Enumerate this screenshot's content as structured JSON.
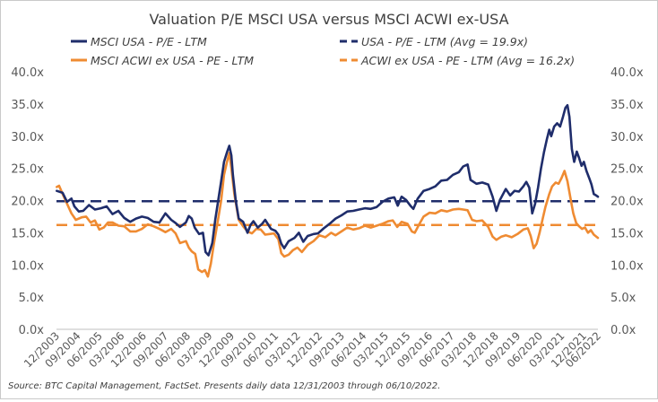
{
  "chart_data": {
    "type": "line",
    "title": "Valuation P/E MSCI USA versus MSCI ACWI ex-USA",
    "source": "Source: BTC Capital Management, FactSet. Presents daily data 12/31/2003 through 06/10/2022.",
    "ylim": [
      0,
      40
    ],
    "y_ticks": [
      {
        "value": 0,
        "label": "0.0x"
      },
      {
        "value": 5,
        "label": "5.0x"
      },
      {
        "value": 10,
        "label": "10.0x"
      },
      {
        "value": 15,
        "label": "15.0x"
      },
      {
        "value": 20,
        "label": "20.0x"
      },
      {
        "value": 25,
        "label": "25.0x"
      },
      {
        "value": 30,
        "label": "30.0x"
      },
      {
        "value": 35,
        "label": "35.0x"
      },
      {
        "value": 40,
        "label": "40.0x"
      }
    ],
    "x_range": [
      2003.99,
      2022.44
    ],
    "x_ticks": [
      {
        "value": 2003.99,
        "label": "12/2003"
      },
      {
        "value": 2004.71,
        "label": "09/2004"
      },
      {
        "value": 2005.45,
        "label": "06/2005"
      },
      {
        "value": 2006.2,
        "label": "03/2006"
      },
      {
        "value": 2006.95,
        "label": "12/2006"
      },
      {
        "value": 2007.7,
        "label": "09/2007"
      },
      {
        "value": 2008.45,
        "label": "06/2008"
      },
      {
        "value": 2009.2,
        "label": "03/2009"
      },
      {
        "value": 2009.95,
        "label": "12/2009"
      },
      {
        "value": 2010.7,
        "label": "09/2010"
      },
      {
        "value": 2011.45,
        "label": "06/2011"
      },
      {
        "value": 2012.2,
        "label": "03/2012"
      },
      {
        "value": 2012.95,
        "label": "12/2012"
      },
      {
        "value": 2013.7,
        "label": "09/2013"
      },
      {
        "value": 2014.45,
        "label": "06/2014"
      },
      {
        "value": 2015.2,
        "label": "03/2015"
      },
      {
        "value": 2015.95,
        "label": "12/2015"
      },
      {
        "value": 2016.7,
        "label": "09/2016"
      },
      {
        "value": 2017.45,
        "label": "06/2017"
      },
      {
        "value": 2018.2,
        "label": "03/2018"
      },
      {
        "value": 2018.95,
        "label": "12/2018"
      },
      {
        "value": 2019.7,
        "label": "09/2019"
      },
      {
        "value": 2020.45,
        "label": "06/2020"
      },
      {
        "value": 2021.2,
        "label": "03/2021"
      },
      {
        "value": 2021.95,
        "label": "12/2021"
      },
      {
        "value": 2022.44,
        "label": "06/2022"
      }
    ],
    "legend_placement": "top",
    "series": [
      {
        "name": "MSCI USA - P/E - LTM",
        "color": "#1f2d6b",
        "style": "solid",
        "points": [
          [
            2004.0,
            21.5
          ],
          [
            2004.2,
            21.2
          ],
          [
            2004.35,
            19.8
          ],
          [
            2004.5,
            20.3
          ],
          [
            2004.6,
            19.1
          ],
          [
            2004.75,
            18.3
          ],
          [
            2004.9,
            18.4
          ],
          [
            2005.1,
            19.3
          ],
          [
            2005.3,
            18.6
          ],
          [
            2005.5,
            18.8
          ],
          [
            2005.7,
            19.1
          ],
          [
            2005.9,
            17.9
          ],
          [
            2006.1,
            18.4
          ],
          [
            2006.3,
            17.3
          ],
          [
            2006.5,
            16.7
          ],
          [
            2006.7,
            17.2
          ],
          [
            2006.9,
            17.5
          ],
          [
            2007.1,
            17.3
          ],
          [
            2007.3,
            16.7
          ],
          [
            2007.5,
            16.6
          ],
          [
            2007.7,
            18.0
          ],
          [
            2007.9,
            17.0
          ],
          [
            2008.05,
            16.5
          ],
          [
            2008.2,
            15.9
          ],
          [
            2008.4,
            16.6
          ],
          [
            2008.5,
            17.6
          ],
          [
            2008.6,
            17.2
          ],
          [
            2008.7,
            15.8
          ],
          [
            2008.85,
            14.8
          ],
          [
            2008.98,
            15.0
          ],
          [
            2009.07,
            12.0
          ],
          [
            2009.17,
            11.5
          ],
          [
            2009.3,
            13.4
          ],
          [
            2009.4,
            17.0
          ],
          [
            2009.5,
            20.0
          ],
          [
            2009.6,
            23.0
          ],
          [
            2009.7,
            26.0
          ],
          [
            2009.8,
            27.5
          ],
          [
            2009.88,
            28.5
          ],
          [
            2009.95,
            27.0
          ],
          [
            2010.0,
            24.0
          ],
          [
            2010.1,
            20.0
          ],
          [
            2010.2,
            17.2
          ],
          [
            2010.35,
            16.7
          ],
          [
            2010.5,
            15.0
          ],
          [
            2010.6,
            16.2
          ],
          [
            2010.7,
            16.8
          ],
          [
            2010.85,
            15.8
          ],
          [
            2011.0,
            16.4
          ],
          [
            2011.1,
            17.0
          ],
          [
            2011.3,
            15.6
          ],
          [
            2011.45,
            15.3
          ],
          [
            2011.55,
            14.7
          ],
          [
            2011.65,
            13.3
          ],
          [
            2011.75,
            12.6
          ],
          [
            2011.9,
            13.7
          ],
          [
            2012.1,
            14.2
          ],
          [
            2012.25,
            15.0
          ],
          [
            2012.4,
            13.6
          ],
          [
            2012.55,
            14.5
          ],
          [
            2012.75,
            14.8
          ],
          [
            2012.9,
            14.9
          ],
          [
            2013.1,
            15.7
          ],
          [
            2013.3,
            16.4
          ],
          [
            2013.5,
            17.2
          ],
          [
            2013.7,
            17.7
          ],
          [
            2013.9,
            18.3
          ],
          [
            2014.1,
            18.4
          ],
          [
            2014.3,
            18.6
          ],
          [
            2014.5,
            18.8
          ],
          [
            2014.7,
            18.7
          ],
          [
            2014.9,
            19.0
          ],
          [
            2015.1,
            19.8
          ],
          [
            2015.3,
            20.3
          ],
          [
            2015.5,
            20.5
          ],
          [
            2015.62,
            19.2
          ],
          [
            2015.75,
            20.6
          ],
          [
            2015.9,
            20.1
          ],
          [
            2016.05,
            19.2
          ],
          [
            2016.15,
            18.7
          ],
          [
            2016.3,
            20.3
          ],
          [
            2016.5,
            21.5
          ],
          [
            2016.7,
            21.8
          ],
          [
            2016.9,
            22.2
          ],
          [
            2017.1,
            23.1
          ],
          [
            2017.3,
            23.2
          ],
          [
            2017.5,
            24.0
          ],
          [
            2017.7,
            24.4
          ],
          [
            2017.85,
            25.3
          ],
          [
            2018.0,
            25.6
          ],
          [
            2018.1,
            23.2
          ],
          [
            2018.3,
            22.6
          ],
          [
            2018.5,
            22.8
          ],
          [
            2018.7,
            22.5
          ],
          [
            2018.85,
            20.6
          ],
          [
            2018.98,
            18.4
          ],
          [
            2019.1,
            20.1
          ],
          [
            2019.3,
            21.8
          ],
          [
            2019.45,
            20.8
          ],
          [
            2019.6,
            21.5
          ],
          [
            2019.75,
            21.4
          ],
          [
            2019.9,
            22.2
          ],
          [
            2020.0,
            22.9
          ],
          [
            2020.1,
            22.0
          ],
          [
            2020.2,
            18.0
          ],
          [
            2020.3,
            19.5
          ],
          [
            2020.4,
            22.0
          ],
          [
            2020.5,
            25.0
          ],
          [
            2020.6,
            27.5
          ],
          [
            2020.7,
            29.5
          ],
          [
            2020.78,
            31.0
          ],
          [
            2020.85,
            30.0
          ],
          [
            2020.95,
            31.5
          ],
          [
            2021.05,
            32.0
          ],
          [
            2021.15,
            31.5
          ],
          [
            2021.25,
            33.0
          ],
          [
            2021.33,
            34.4
          ],
          [
            2021.4,
            34.8
          ],
          [
            2021.47,
            33.0
          ],
          [
            2021.55,
            28.0
          ],
          [
            2021.63,
            26.0
          ],
          [
            2021.72,
            27.6
          ],
          [
            2021.8,
            26.6
          ],
          [
            2021.88,
            25.4
          ],
          [
            2021.96,
            26.0
          ],
          [
            2022.05,
            24.6
          ],
          [
            2022.15,
            23.4
          ],
          [
            2022.22,
            22.5
          ],
          [
            2022.3,
            21.0
          ],
          [
            2022.38,
            20.8
          ],
          [
            2022.44,
            20.6
          ]
        ]
      },
      {
        "name": "MSCI ACWI ex USA - PE - LTM",
        "color": "#ef8b32",
        "style": "solid",
        "points": [
          [
            2004.0,
            22.1
          ],
          [
            2004.08,
            22.3
          ],
          [
            2004.2,
            21.0
          ],
          [
            2004.35,
            19.5
          ],
          [
            2004.5,
            18.0
          ],
          [
            2004.65,
            17.0
          ],
          [
            2004.85,
            17.4
          ],
          [
            2005.0,
            17.5
          ],
          [
            2005.15,
            16.6
          ],
          [
            2005.3,
            16.9
          ],
          [
            2005.45,
            15.5
          ],
          [
            2005.6,
            15.8
          ],
          [
            2005.75,
            16.6
          ],
          [
            2005.9,
            16.6
          ],
          [
            2006.1,
            16.1
          ],
          [
            2006.3,
            16.0
          ],
          [
            2006.5,
            15.2
          ],
          [
            2006.7,
            15.2
          ],
          [
            2006.9,
            15.6
          ],
          [
            2007.1,
            16.3
          ],
          [
            2007.3,
            16.0
          ],
          [
            2007.5,
            15.6
          ],
          [
            2007.7,
            15.1
          ],
          [
            2007.9,
            15.6
          ],
          [
            2008.05,
            14.9
          ],
          [
            2008.2,
            13.4
          ],
          [
            2008.4,
            13.7
          ],
          [
            2008.5,
            12.7
          ],
          [
            2008.6,
            12.1
          ],
          [
            2008.72,
            11.7
          ],
          [
            2008.82,
            9.3
          ],
          [
            2008.95,
            8.9
          ],
          [
            2009.05,
            9.2
          ],
          [
            2009.15,
            8.2
          ],
          [
            2009.25,
            10.2
          ],
          [
            2009.35,
            13.2
          ],
          [
            2009.5,
            17.2
          ],
          [
            2009.6,
            20.0
          ],
          [
            2009.7,
            24.0
          ],
          [
            2009.8,
            26.0
          ],
          [
            2009.88,
            27.4
          ],
          [
            2009.95,
            25.0
          ],
          [
            2010.05,
            21.0
          ],
          [
            2010.2,
            17.0
          ],
          [
            2010.35,
            16.0
          ],
          [
            2010.5,
            15.2
          ],
          [
            2010.65,
            14.9
          ],
          [
            2010.8,
            15.6
          ],
          [
            2010.95,
            15.5
          ],
          [
            2011.1,
            14.7
          ],
          [
            2011.25,
            14.8
          ],
          [
            2011.4,
            14.9
          ],
          [
            2011.55,
            14.0
          ],
          [
            2011.65,
            11.8
          ],
          [
            2011.75,
            11.3
          ],
          [
            2011.9,
            11.6
          ],
          [
            2012.05,
            12.3
          ],
          [
            2012.2,
            12.7
          ],
          [
            2012.35,
            12.0
          ],
          [
            2012.55,
            13.1
          ],
          [
            2012.75,
            13.7
          ],
          [
            2012.95,
            14.6
          ],
          [
            2013.15,
            14.3
          ],
          [
            2013.35,
            15.0
          ],
          [
            2013.5,
            14.6
          ],
          [
            2013.7,
            15.2
          ],
          [
            2013.9,
            15.8
          ],
          [
            2014.1,
            15.5
          ],
          [
            2014.3,
            15.7
          ],
          [
            2014.5,
            16.1
          ],
          [
            2014.7,
            15.8
          ],
          [
            2014.9,
            16.1
          ],
          [
            2015.1,
            16.4
          ],
          [
            2015.3,
            16.8
          ],
          [
            2015.45,
            16.9
          ],
          [
            2015.6,
            15.9
          ],
          [
            2015.75,
            16.7
          ],
          [
            2015.95,
            16.4
          ],
          [
            2016.1,
            15.2
          ],
          [
            2016.2,
            15.0
          ],
          [
            2016.35,
            16.3
          ],
          [
            2016.5,
            17.5
          ],
          [
            2016.7,
            18.1
          ],
          [
            2016.9,
            18.0
          ],
          [
            2017.1,
            18.5
          ],
          [
            2017.3,
            18.3
          ],
          [
            2017.5,
            18.6
          ],
          [
            2017.7,
            18.7
          ],
          [
            2017.85,
            18.6
          ],
          [
            2018.0,
            18.5
          ],
          [
            2018.15,
            17.0
          ],
          [
            2018.3,
            16.8
          ],
          [
            2018.5,
            16.9
          ],
          [
            2018.7,
            15.9
          ],
          [
            2018.85,
            14.4
          ],
          [
            2018.98,
            13.9
          ],
          [
            2019.15,
            14.4
          ],
          [
            2019.3,
            14.6
          ],
          [
            2019.5,
            14.3
          ],
          [
            2019.7,
            14.8
          ],
          [
            2019.9,
            15.5
          ],
          [
            2020.05,
            15.7
          ],
          [
            2020.15,
            14.5
          ],
          [
            2020.25,
            12.6
          ],
          [
            2020.35,
            13.3
          ],
          [
            2020.45,
            15.0
          ],
          [
            2020.55,
            17.0
          ],
          [
            2020.65,
            19.0
          ],
          [
            2020.78,
            21.0
          ],
          [
            2020.88,
            22.2
          ],
          [
            2021.0,
            22.8
          ],
          [
            2021.1,
            22.6
          ],
          [
            2021.2,
            23.5
          ],
          [
            2021.3,
            24.6
          ],
          [
            2021.4,
            23.0
          ],
          [
            2021.5,
            20.5
          ],
          [
            2021.6,
            18.0
          ],
          [
            2021.7,
            16.5
          ],
          [
            2021.8,
            16.0
          ],
          [
            2021.9,
            15.6
          ],
          [
            2022.0,
            15.8
          ],
          [
            2022.1,
            15.0
          ],
          [
            2022.2,
            15.4
          ],
          [
            2022.3,
            14.7
          ],
          [
            2022.44,
            14.2
          ]
        ]
      },
      {
        "name": "USA - P/E - LTM (Avg = 19.9x)",
        "color": "#1f2d6b",
        "style": "dashed",
        "points": [
          [
            2003.99,
            19.9
          ],
          [
            2022.44,
            19.9
          ]
        ]
      },
      {
        "name": "ACWI ex USA - PE - LTM (Avg = 16.2x)",
        "color": "#ef8b32",
        "style": "dashed",
        "points": [
          [
            2003.99,
            16.2
          ],
          [
            2022.44,
            16.2
          ]
        ]
      }
    ]
  }
}
